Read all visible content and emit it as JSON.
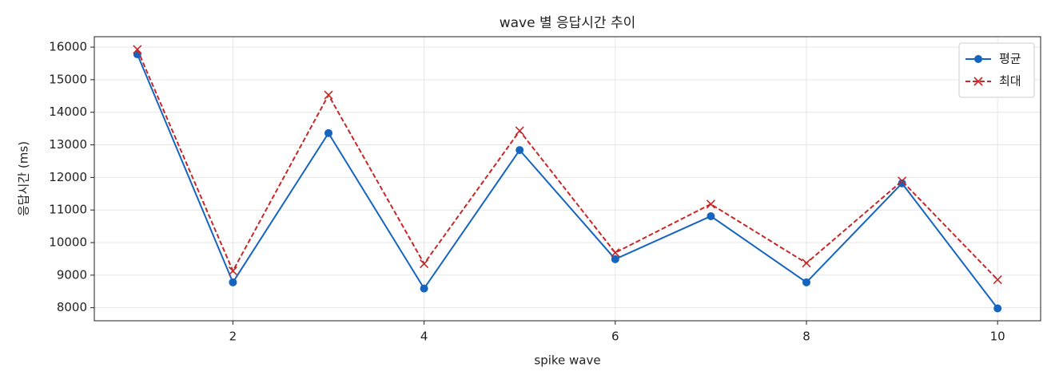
{
  "chart_data": {
    "type": "line",
    "title": "wave 별 응답시간 추이",
    "x_label": "spike wave",
    "y_label": "응답시간 (ms)",
    "x": [
      1,
      2,
      3,
      4,
      5,
      6,
      7,
      8,
      9,
      10
    ],
    "series": [
      {
        "name": "평균",
        "color": "#1565c0",
        "marker": "circle",
        "dash": false,
        "values": [
          15780,
          8780,
          13360,
          8590,
          12840,
          9490,
          10810,
          8780,
          11820,
          7980
        ]
      },
      {
        "name": "최대",
        "color": "#c62828",
        "marker": "x",
        "dash": true,
        "values": [
          15930,
          9130,
          14530,
          9350,
          13430,
          9690,
          11180,
          9370,
          11890,
          8860
        ]
      }
    ],
    "xlim": [
      0.55,
      10.45
    ],
    "xticks": [
      2,
      4,
      6,
      8,
      10
    ],
    "ylim": [
      7600,
      16320
    ],
    "yticks": [
      8000,
      9000,
      10000,
      11000,
      12000,
      13000,
      14000,
      15000,
      16000
    ],
    "grid": true,
    "legend": "upper right"
  }
}
